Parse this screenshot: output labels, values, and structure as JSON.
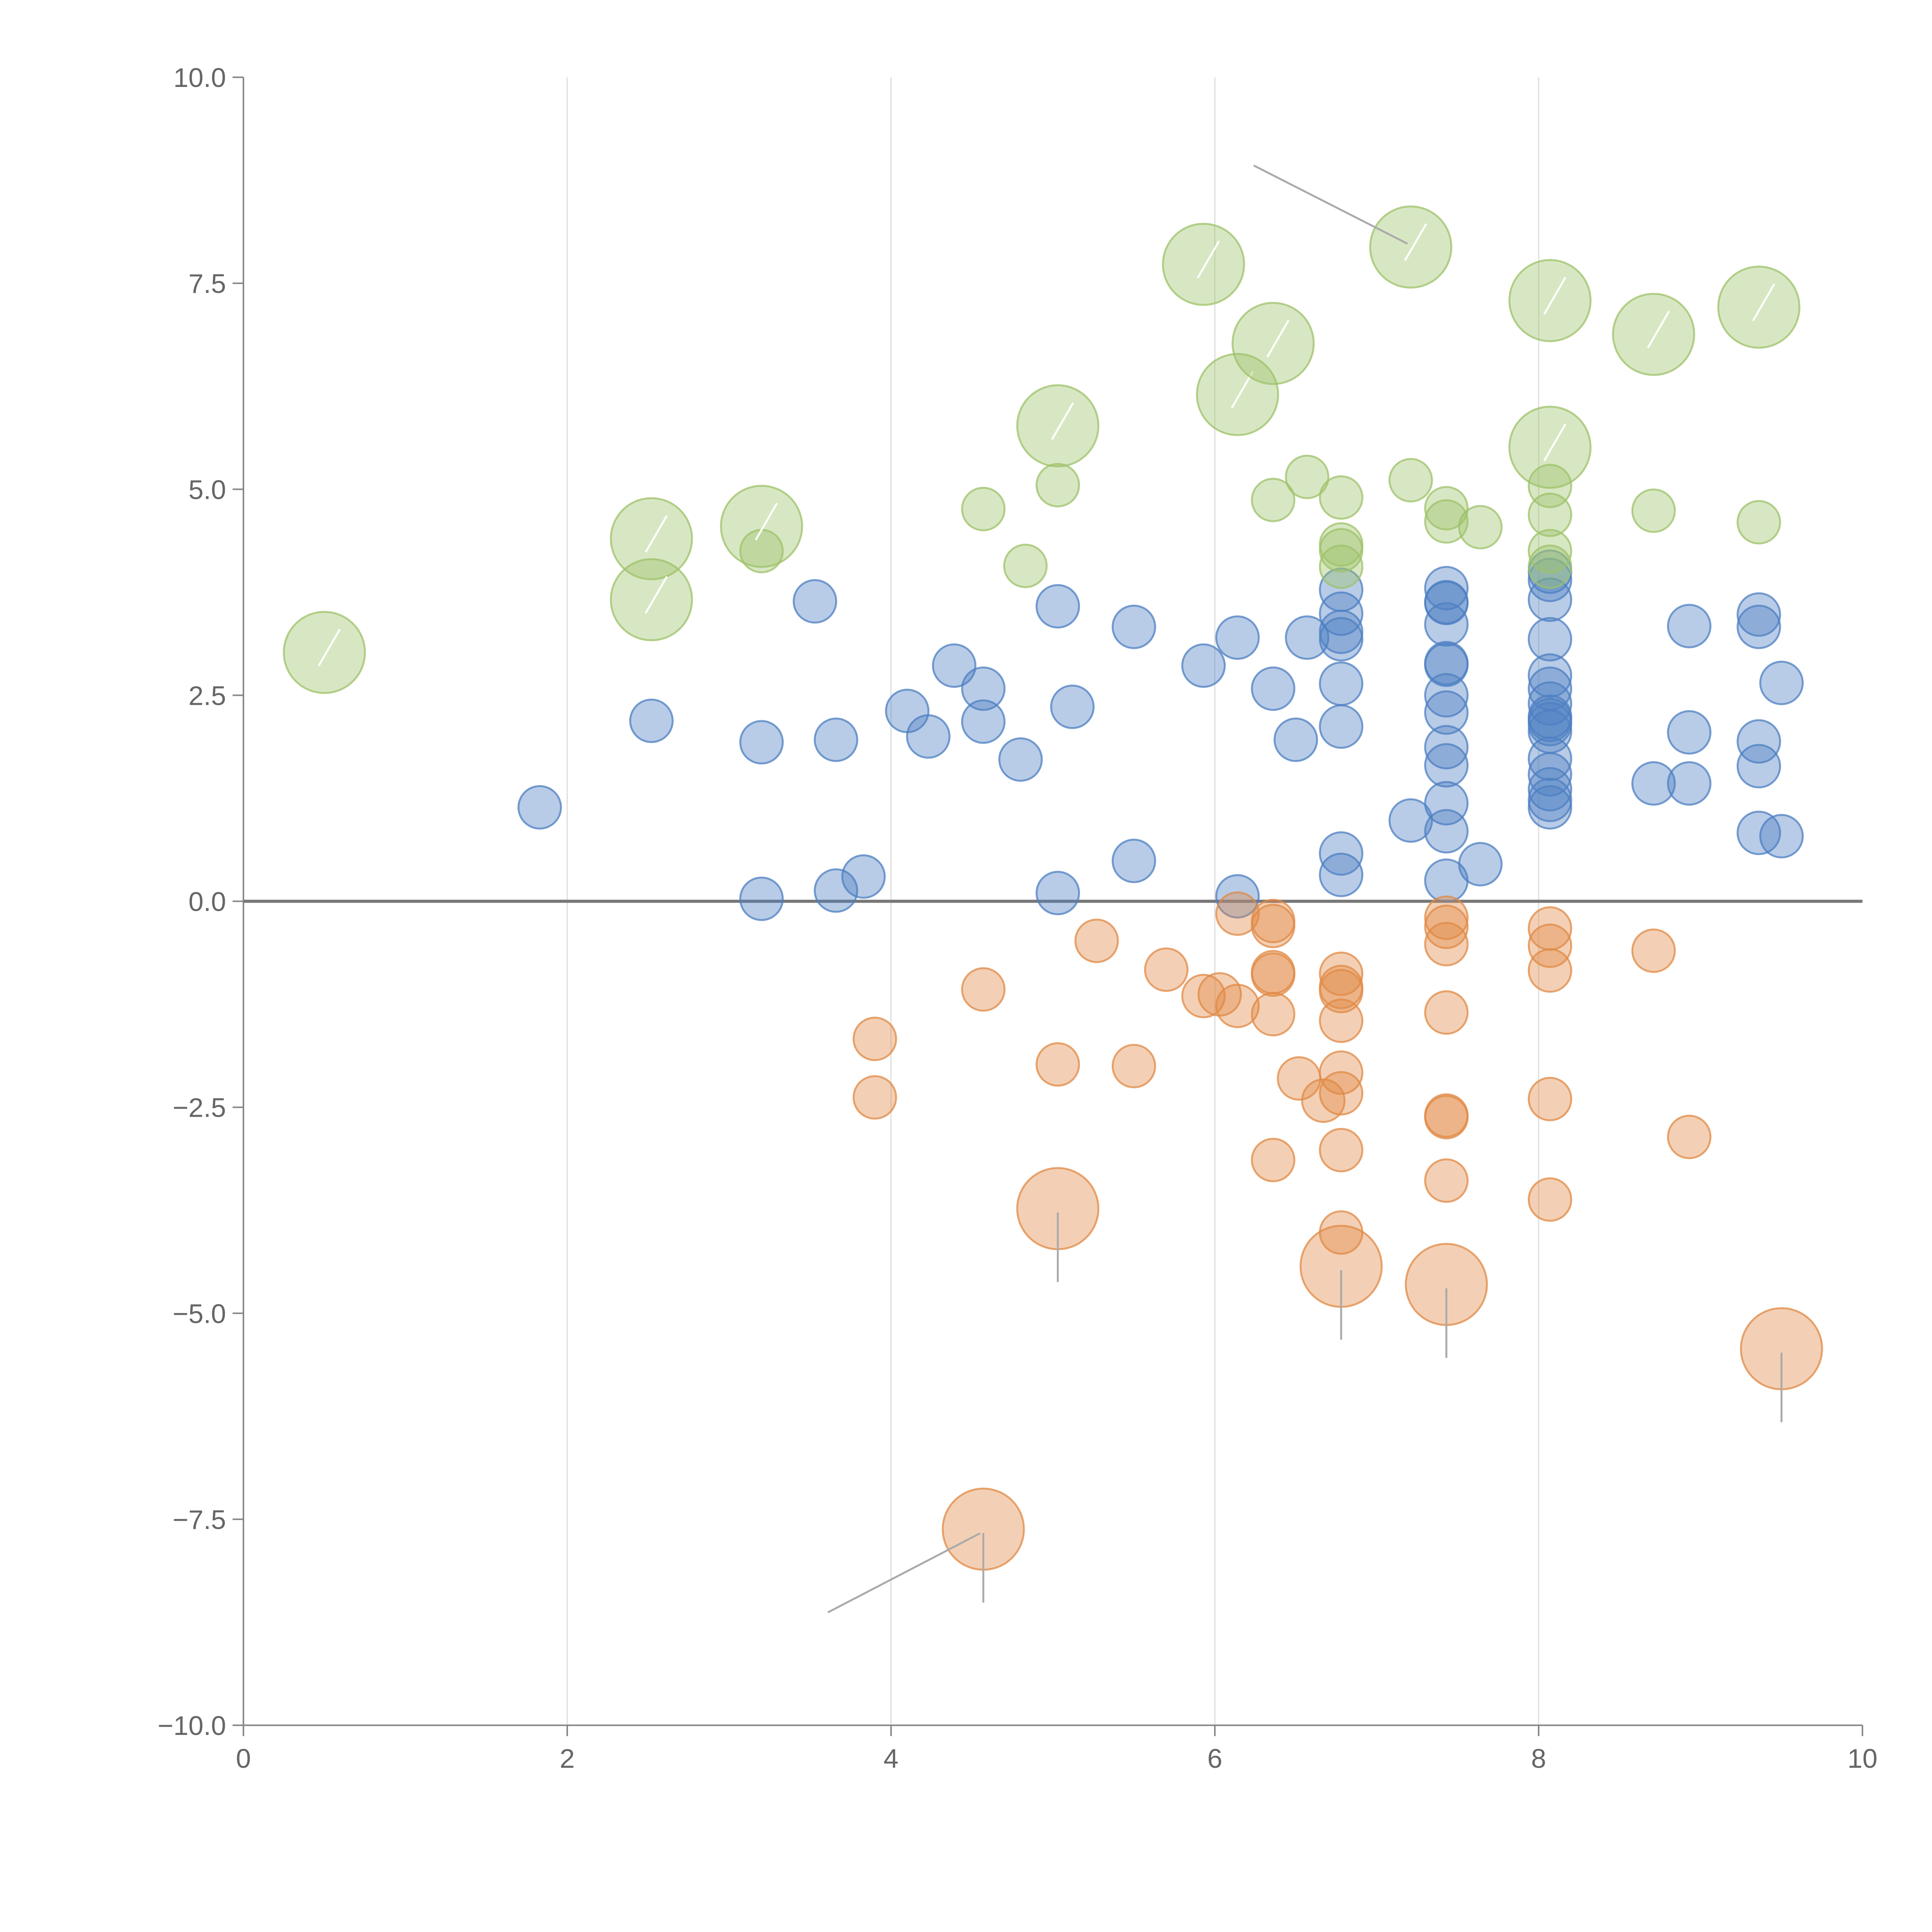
{
  "chart_data": {
    "type": "scatter",
    "title": "",
    "xlabel": "",
    "ylabel": "",
    "xlim": [
      0,
      10
    ],
    "ylim": [
      -10,
      10
    ],
    "x_ticks": [
      "0",
      "2",
      "4",
      "6",
      "8",
      "10"
    ],
    "y_ticks": [
      "10.0",
      "7.5",
      "5.0",
      "2.5",
      "0.0",
      "−2.5",
      "−5.0",
      "−7.5",
      "−10.0"
    ],
    "x_tick_values": [
      0,
      2,
      4,
      6,
      8,
      10
    ],
    "y_tick_values": [
      10,
      7.5,
      5,
      2.5,
      0,
      -2.5,
      -5,
      -7.5,
      -10
    ],
    "vertical_gridlines_at": [
      2,
      4,
      6,
      8
    ],
    "baseline_y": 0,
    "series": [
      {
        "name": "blue",
        "color": "#4e7fc2",
        "fill_opacity": 0.4,
        "points": [
          [
            1.83,
            1.14
          ],
          [
            2.52,
            2.19
          ],
          [
            3.2,
            1.93
          ],
          [
            3.2,
            0.03
          ],
          [
            3.53,
            3.64
          ],
          [
            3.66,
            1.96
          ],
          [
            3.66,
            0.13
          ],
          [
            3.83,
            0.3
          ],
          [
            4.1,
            2.31
          ],
          [
            4.23,
            2.0
          ],
          [
            4.39,
            2.86
          ],
          [
            4.57,
            2.58
          ],
          [
            4.57,
            2.18
          ],
          [
            4.8,
            1.72
          ],
          [
            5.03,
            3.58
          ],
          [
            5.03,
            0.1
          ],
          [
            5.12,
            2.36
          ],
          [
            5.5,
            3.33
          ],
          [
            5.5,
            0.49
          ],
          [
            5.93,
            2.86
          ],
          [
            6.14,
            3.2
          ],
          [
            6.14,
            0.06
          ],
          [
            6.36,
            2.58
          ],
          [
            6.5,
            1.96
          ],
          [
            6.57,
            3.2
          ],
          [
            6.78,
            3.78
          ],
          [
            6.78,
            3.49
          ],
          [
            6.78,
            3.27
          ],
          [
            6.78,
            3.18
          ],
          [
            6.78,
            2.64
          ],
          [
            6.78,
            2.12
          ],
          [
            6.78,
            0.58
          ],
          [
            6.78,
            0.32
          ],
          [
            7.21,
            0.98
          ],
          [
            7.43,
            3.8
          ],
          [
            7.43,
            3.63
          ],
          [
            7.43,
            3.62
          ],
          [
            7.43,
            3.36
          ],
          [
            7.43,
            2.89
          ],
          [
            7.43,
            2.87
          ],
          [
            7.43,
            2.5
          ],
          [
            7.43,
            2.29
          ],
          [
            7.43,
            1.87
          ],
          [
            7.43,
            1.65
          ],
          [
            7.43,
            1.19
          ],
          [
            7.43,
            0.85
          ],
          [
            7.43,
            0.25
          ],
          [
            7.64,
            0.45
          ],
          [
            8.07,
            4.0
          ],
          [
            8.07,
            3.9
          ],
          [
            8.07,
            3.66
          ],
          [
            8.07,
            3.18
          ],
          [
            8.07,
            2.74
          ],
          [
            8.07,
            2.58
          ],
          [
            8.07,
            2.4
          ],
          [
            8.07,
            2.24
          ],
          [
            8.07,
            2.2
          ],
          [
            8.07,
            2.15
          ],
          [
            8.07,
            2.06
          ],
          [
            8.07,
            1.73
          ],
          [
            8.07,
            1.54
          ],
          [
            8.07,
            1.36
          ],
          [
            8.07,
            1.23
          ],
          [
            8.07,
            1.14
          ],
          [
            8.71,
            1.43
          ],
          [
            8.93,
            3.34
          ],
          [
            8.93,
            2.05
          ],
          [
            8.93,
            1.43
          ],
          [
            9.36,
            3.48
          ],
          [
            9.36,
            3.33
          ],
          [
            9.36,
            1.94
          ],
          [
            9.36,
            1.64
          ],
          [
            9.36,
            0.83
          ],
          [
            9.5,
            2.65
          ],
          [
            9.5,
            0.79
          ]
        ]
      },
      {
        "name": "orange",
        "color": "#e08a46",
        "fill_opacity": 0.4,
        "points": [
          [
            3.9,
            -1.67
          ],
          [
            3.9,
            -2.38
          ],
          [
            4.57,
            -1.07
          ],
          [
            5.03,
            -1.98
          ],
          [
            5.27,
            -0.48
          ],
          [
            5.5,
            -2.0
          ],
          [
            5.7,
            -0.83
          ],
          [
            5.93,
            -1.15
          ],
          [
            6.03,
            -1.13
          ],
          [
            6.14,
            -0.15
          ],
          [
            6.14,
            -1.27
          ],
          [
            6.36,
            -0.24
          ],
          [
            6.36,
            -0.3
          ],
          [
            6.36,
            -0.86
          ],
          [
            6.36,
            -0.89
          ],
          [
            6.36,
            -1.37
          ],
          [
            6.36,
            -3.14
          ],
          [
            6.52,
            -2.15
          ],
          [
            6.67,
            -2.42
          ],
          [
            6.78,
            -0.88
          ],
          [
            6.78,
            -1.04
          ],
          [
            6.78,
            -1.09
          ],
          [
            6.78,
            -1.45
          ],
          [
            6.78,
            -2.08
          ],
          [
            6.78,
            -2.33
          ],
          [
            6.78,
            -3.02
          ],
          [
            6.78,
            -4.02
          ],
          [
            7.43,
            -0.2
          ],
          [
            7.43,
            -0.31
          ],
          [
            7.43,
            -0.52
          ],
          [
            7.43,
            -1.35
          ],
          [
            7.43,
            -2.6
          ],
          [
            7.43,
            -2.62
          ],
          [
            7.43,
            -3.39
          ],
          [
            8.07,
            -0.33
          ],
          [
            8.07,
            -0.54
          ],
          [
            8.07,
            -0.84
          ],
          [
            8.07,
            -2.4
          ],
          [
            8.07,
            -3.62
          ],
          [
            8.71,
            -0.6
          ],
          [
            8.93,
            -2.86
          ]
        ]
      },
      {
        "name": "green",
        "color": "#9dc26a",
        "fill_opacity": 0.4,
        "points": [
          [
            3.2,
            4.25
          ],
          [
            4.57,
            4.76
          ],
          [
            4.83,
            4.07
          ],
          [
            5.03,
            5.05
          ],
          [
            6.36,
            4.87
          ],
          [
            6.57,
            5.15
          ],
          [
            6.78,
            4.9
          ],
          [
            6.78,
            4.33
          ],
          [
            6.78,
            4.26
          ],
          [
            6.78,
            4.06
          ],
          [
            7.21,
            5.11
          ],
          [
            7.43,
            4.77
          ],
          [
            7.43,
            4.61
          ],
          [
            7.64,
            4.54
          ],
          [
            8.07,
            5.04
          ],
          [
            8.07,
            4.69
          ],
          [
            8.07,
            4.25
          ],
          [
            8.07,
            4.06
          ],
          [
            8.71,
            4.74
          ],
          [
            9.36,
            4.6
          ]
        ]
      }
    ],
    "annotated_points": [
      {
        "series": "green",
        "x": 0.5,
        "y": 3.02,
        "label": ""
      },
      {
        "series": "green",
        "x": 2.52,
        "y": 4.4,
        "label": ""
      },
      {
        "series": "green",
        "x": 2.52,
        "y": 3.66,
        "label": ""
      },
      {
        "series": "green",
        "x": 3.2,
        "y": 4.55,
        "label": ""
      },
      {
        "series": "green",
        "x": 5.03,
        "y": 5.77,
        "label": ""
      },
      {
        "series": "green",
        "x": 5.93,
        "y": 7.73,
        "label": ""
      },
      {
        "series": "green",
        "x": 6.14,
        "y": 6.15,
        "label": ""
      },
      {
        "series": "green",
        "x": 6.36,
        "y": 6.77,
        "label": ""
      },
      {
        "series": "green",
        "x": 7.21,
        "y": 7.94,
        "label": ""
      },
      {
        "series": "green",
        "x": 8.07,
        "y": 7.29,
        "label": ""
      },
      {
        "series": "green",
        "x": 8.07,
        "y": 5.51,
        "label": ""
      },
      {
        "series": "green",
        "x": 8.71,
        "y": 6.88,
        "label": ""
      },
      {
        "series": "green",
        "x": 9.36,
        "y": 7.21,
        "label": ""
      },
      {
        "series": "orange",
        "x": 5.03,
        "y": -3.73,
        "label": ""
      },
      {
        "series": "orange",
        "x": 6.78,
        "y": -4.43,
        "label": ""
      },
      {
        "series": "orange",
        "x": 7.43,
        "y": -4.65,
        "label": ""
      },
      {
        "series": "orange",
        "x": 9.5,
        "y": -5.43,
        "label": ""
      },
      {
        "series": "orange",
        "x": 4.57,
        "y": -7.62,
        "label": ""
      }
    ]
  }
}
